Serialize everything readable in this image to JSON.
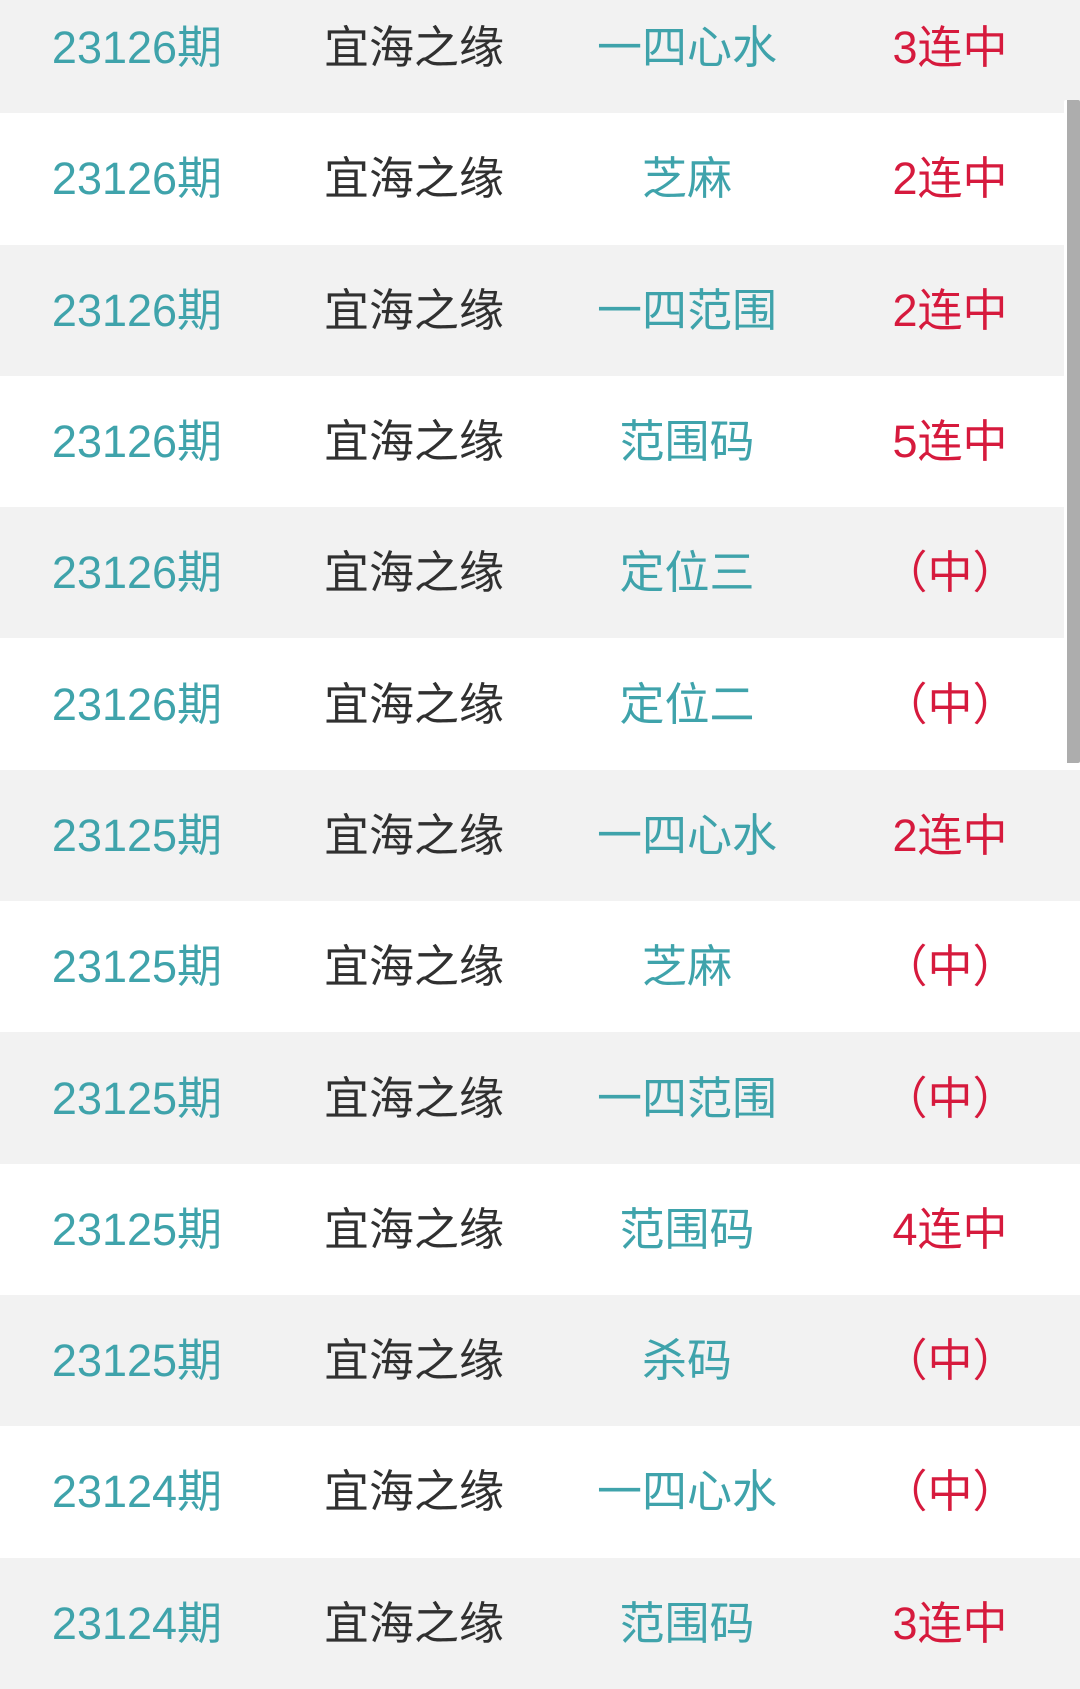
{
  "colors": {
    "teal": "#3fa3ab",
    "text_dark": "#303030",
    "result_red": "#d61a3d",
    "row_gray": "#f2f2f2",
    "row_white": "#ffffff",
    "scrollbar_thumb": "#adadad"
  },
  "table": {
    "rows": [
      {
        "period": "23126期",
        "source": "宜海之缘",
        "category": "一四心水",
        "result": "3连中"
      },
      {
        "period": "23126期",
        "source": "宜海之缘",
        "category": "芝麻",
        "result": "2连中"
      },
      {
        "period": "23126期",
        "source": "宜海之缘",
        "category": "一四范围",
        "result": "2连中"
      },
      {
        "period": "23126期",
        "source": "宜海之缘",
        "category": "范围码",
        "result": "5连中"
      },
      {
        "period": "23126期",
        "source": "宜海之缘",
        "category": "定位三",
        "result": "（中）"
      },
      {
        "period": "23126期",
        "source": "宜海之缘",
        "category": "定位二",
        "result": "（中）"
      },
      {
        "period": "23125期",
        "source": "宜海之缘",
        "category": "一四心水",
        "result": "2连中"
      },
      {
        "period": "23125期",
        "source": "宜海之缘",
        "category": "芝麻",
        "result": "（中）"
      },
      {
        "period": "23125期",
        "source": "宜海之缘",
        "category": "一四范围",
        "result": "（中）"
      },
      {
        "period": "23125期",
        "source": "宜海之缘",
        "category": "范围码",
        "result": "4连中"
      },
      {
        "period": "23125期",
        "source": "宜海之缘",
        "category": "杀码",
        "result": "（中）"
      },
      {
        "period": "23124期",
        "source": "宜海之缘",
        "category": "一四心水",
        "result": "（中）"
      },
      {
        "period": "23124期",
        "source": "宜海之缘",
        "category": "范围码",
        "result": "3连中"
      }
    ]
  }
}
